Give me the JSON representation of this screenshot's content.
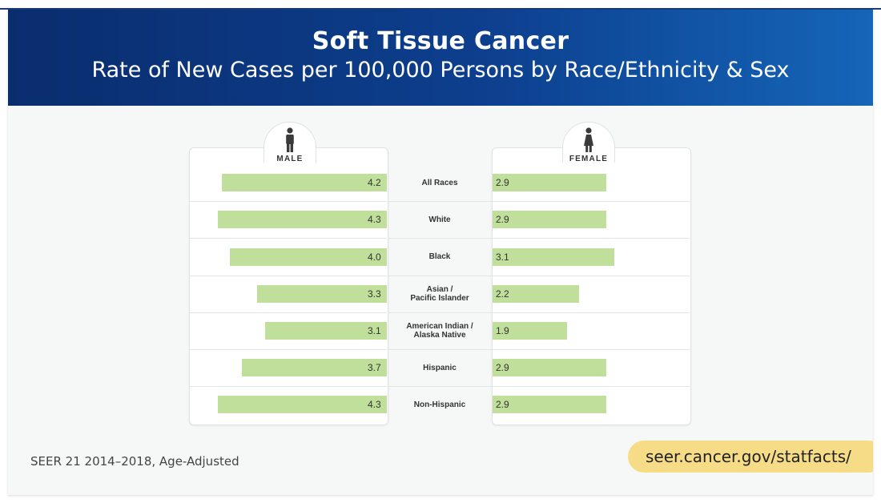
{
  "header": {
    "title": "Soft Tissue Cancer",
    "subtitle": "Rate of New Cases per 100,000 Persons by Race/Ethnicity & Sex"
  },
  "panels": {
    "male_label": "MALE",
    "female_label": "FEMALE"
  },
  "footer": {
    "source": "SEER 21 2014–2018, Age-Adjusted",
    "url": "seer.cancer.gov/statfacts/"
  },
  "colors": {
    "header_start": "#0a2d6e",
    "header_end": "#1565b8",
    "bar": "#bfdf9a",
    "url_pill": "#f7dc88"
  },
  "chart_data": {
    "type": "bar",
    "orientation": "horizontal-butterfly",
    "title": "Soft Tissue Cancer",
    "subtitle": "Rate of New Cases per 100,000 Persons by Race/Ethnicity & Sex",
    "categories": [
      "All Races",
      "White",
      "Black",
      "Asian /\nPacific Islander",
      "American Indian /\nAlaska Native",
      "Hispanic",
      "Non-Hispanic"
    ],
    "series": [
      {
        "name": "MALE",
        "values": [
          4.2,
          4.3,
          4.0,
          3.3,
          3.1,
          3.7,
          4.3
        ],
        "labels": [
          "4.2",
          "4.3",
          "4.0",
          "3.3",
          "3.1",
          "3.7",
          "4.3"
        ]
      },
      {
        "name": "FEMALE",
        "values": [
          2.9,
          2.9,
          3.1,
          2.2,
          1.9,
          2.9,
          2.9
        ],
        "labels": [
          "2.9",
          "2.9",
          "3.1",
          "2.2",
          "1.9",
          "2.9",
          "2.9"
        ]
      }
    ],
    "grid": false,
    "legend": "none"
  }
}
